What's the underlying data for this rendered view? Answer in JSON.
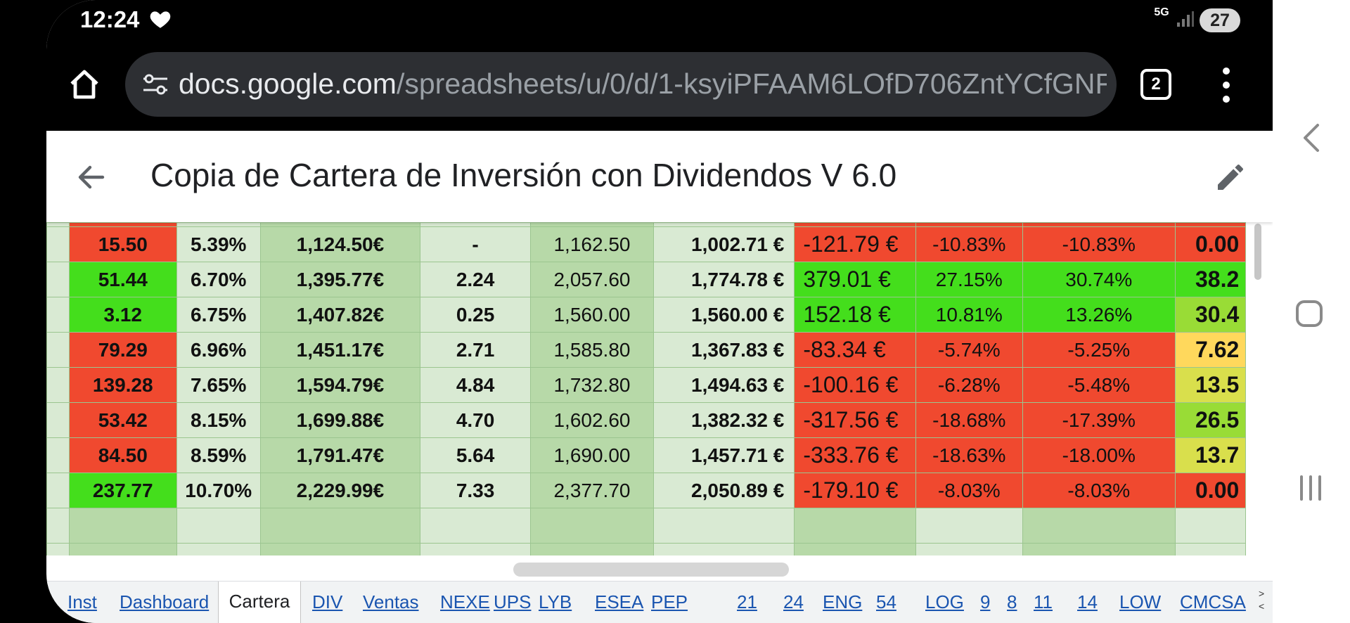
{
  "status_bar": {
    "time": "12:24",
    "network": "5G",
    "battery": "27"
  },
  "browser": {
    "url_domain": "docs.google.com",
    "url_path": "/spreadsheets/u/0/d/1-ksyiPFAAM6LOfD706ZntYCfGNF",
    "tab_count": "2"
  },
  "sheet": {
    "title": "Copia de Cartera de Inversión con Dividendos V 6.0"
  },
  "rows": [
    {
      "a": "15.50",
      "a_color": "red",
      "b": "5.39%",
      "c": "1,124.50€",
      "d": "-",
      "e": "1,162.50",
      "f": "1,002.71 €",
      "g": "-121.79 €",
      "g_color": "red",
      "h": "-10.83%",
      "h_color": "red",
      "i": "-10.83%",
      "i_color": "red",
      "j": "0.00",
      "j_color": "red"
    },
    {
      "a": "51.44",
      "a_color": "grn",
      "b": "6.70%",
      "c": "1,395.77€",
      "d": "2.24",
      "e": "2,057.60",
      "f": "1,774.78 €",
      "g": "379.01 €",
      "g_color": "grn",
      "h": "27.15%",
      "h_color": "grn",
      "i": "30.74%",
      "i_color": "grn",
      "j": "38.2",
      "j_color": "grn"
    },
    {
      "a": "3.12",
      "a_color": "grn",
      "b": "6.75%",
      "c": "1,407.82€",
      "d": "0.25",
      "e": "1,560.00",
      "f": "1,560.00 €",
      "g": "152.18 €",
      "g_color": "grn",
      "h": "10.81%",
      "h_color": "grn",
      "i": "13.26%",
      "i_color": "grn",
      "j": "30.4",
      "j_color": "lime"
    },
    {
      "a": "79.29",
      "a_color": "red",
      "b": "6.96%",
      "c": "1,451.17€",
      "d": "2.71",
      "e": "1,585.80",
      "f": "1,367.83 €",
      "g": "-83.34 €",
      "g_color": "red",
      "h": "-5.74%",
      "h_color": "red",
      "i": "-5.25%",
      "i_color": "red",
      "j": "7.62",
      "j_color": "ylw"
    },
    {
      "a": "139.28",
      "a_color": "red",
      "b": "7.65%",
      "c": "1,594.79€",
      "d": "4.84",
      "e": "1,732.80",
      "f": "1,494.63 €",
      "g": "-100.16 €",
      "g_color": "red",
      "h": "-6.28%",
      "h_color": "red",
      "i": "-5.48%",
      "i_color": "red",
      "j": "13.5",
      "j_color": "ylg"
    },
    {
      "a": "53.42",
      "a_color": "red",
      "b": "8.15%",
      "c": "1,699.88€",
      "d": "4.70",
      "e": "1,602.60",
      "f": "1,382.32 €",
      "g": "-317.56 €",
      "g_color": "red",
      "h": "-18.68%",
      "h_color": "red",
      "i": "-17.39%",
      "i_color": "red",
      "j": "26.5",
      "j_color": "lime"
    },
    {
      "a": "84.50",
      "a_color": "red",
      "b": "8.59%",
      "c": "1,791.47€",
      "d": "5.64",
      "e": "1,690.00",
      "f": "1,457.71 €",
      "g": "-333.76 €",
      "g_color": "red",
      "h": "-18.63%",
      "h_color": "red",
      "i": "-18.00%",
      "i_color": "red",
      "j": "13.7",
      "j_color": "ylg"
    },
    {
      "a": "237.77",
      "a_color": "grn",
      "b": "10.70%",
      "c": "2,229.99€",
      "d": "7.33",
      "e": "2,377.70",
      "f": "2,050.89 €",
      "g": "-179.10 €",
      "g_color": "red",
      "h": "-8.03%",
      "h_color": "red",
      "i": "-8.03%",
      "i_color": "red",
      "j": "0.00",
      "j_color": "red"
    }
  ],
  "sheet_tabs": [
    "Inst",
    "Dashboard",
    "Cartera",
    "DIV",
    "Ventas",
    "NEXE",
    "UPS",
    "LYB",
    "ESEA",
    "PEP",
    "21",
    "24",
    "ENG",
    "54",
    "LOG",
    "9",
    "8",
    "11",
    "14",
    "LOW",
    "CMCSA"
  ],
  "active_tab": "Cartera",
  "icons": [
    "heart-icon",
    "signal-icon",
    "home-icon",
    "tune-icon",
    "menu-icon",
    "back-icon",
    "edit-icon",
    "nav-back-icon",
    "nav-home-icon",
    "nav-recents-icon"
  ]
}
